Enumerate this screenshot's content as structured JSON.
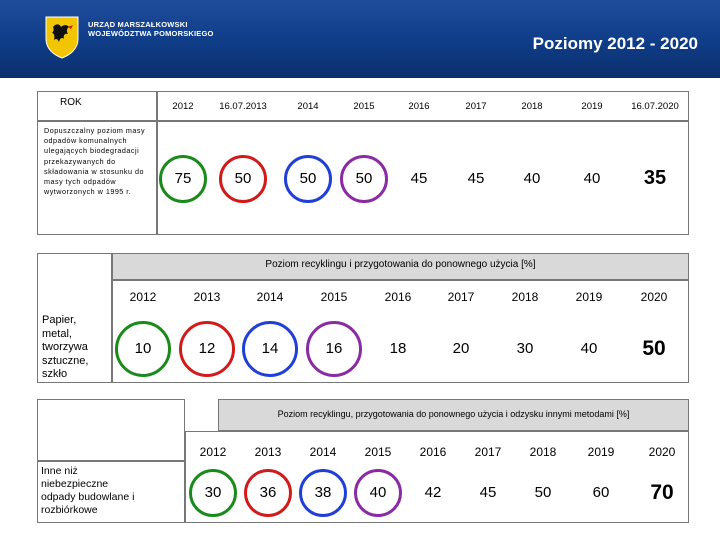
{
  "header": {
    "org_line1": "URZĄD MARSZAŁKOWSKI",
    "org_line2": "WOJEWÓDZTWA POMORSKIEGO",
    "title": "Poziomy 2012 - 2020"
  },
  "table1": {
    "row_header": "ROK",
    "description": "Dopuszczalny poziom masy odpadów komunalnych ulegających biodegradacji przekazywanych do składowania w stosunku do masy tych odpadów wytworzonych w 1995 r.",
    "years": [
      "2012",
      "16.07.2013",
      "2014",
      "2015",
      "2016",
      "2017",
      "2018",
      "2019",
      "16.07.2020"
    ],
    "values": [
      "75",
      "50",
      "50",
      "50",
      "45",
      "45",
      "40",
      "40",
      "35"
    ]
  },
  "table2": {
    "banner": "Poziom recyklingu i przygotowania do ponownego użycia [%]",
    "label": "Papier, metal, tworzywa sztuczne, szkło",
    "years": [
      "2012",
      "2013",
      "2014",
      "2015",
      "2016",
      "2017",
      "2018",
      "2019",
      "2020"
    ],
    "values": [
      "10",
      "12",
      "14",
      "16",
      "18",
      "20",
      "30",
      "40",
      "50"
    ]
  },
  "table3": {
    "banner": "Poziom recyklingu, przygotowania do ponownego użycia i odzysku innymi metodami [%]",
    "label": "Inne niż niebezpieczne odpady budowlane i rozbiórkowe",
    "years": [
      "2012",
      "2013",
      "2014",
      "2015",
      "2016",
      "2017",
      "2018",
      "2019",
      "2020"
    ],
    "values": [
      "30",
      "36",
      "38",
      "40",
      "42",
      "45",
      "50",
      "60",
      "70"
    ]
  },
  "colors": {
    "header_blue": "#0f3c87",
    "panel_gray": "#d9d9d9",
    "circle_green": "#1a8a1a",
    "circle_red": "#d11a1a",
    "circle_blue": "#1f3fd6",
    "circle_purple": "#8a2ba3"
  },
  "icons": {
    "coat_of_arms": "griffin-crest-icon"
  }
}
